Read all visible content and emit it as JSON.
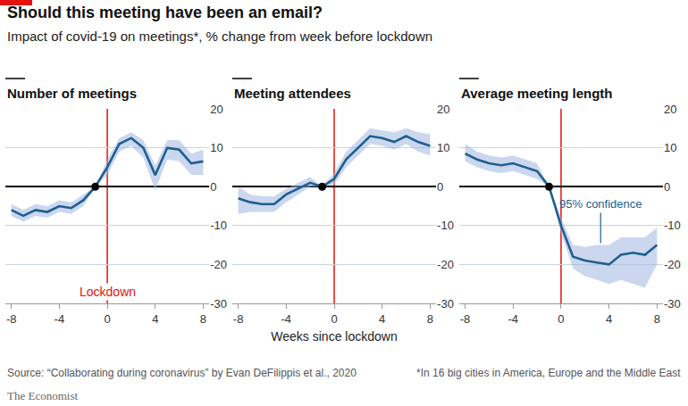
{
  "title": "Should this meeting have been an email?",
  "subtitle": "Impact of covid-19 on meetings*, % change from week before lockdown",
  "source": "Source: “Collaborating during coronavirus” by Evan DeFilippis et al., 2020",
  "footnote": "*In 16 big cities in America, Europe and the Middle East",
  "publisher": "The Economist",
  "chart_data": [
    {
      "type": "line",
      "title": "Number of meetings",
      "color": "#1f5f8f",
      "grid": true,
      "x": [
        -8,
        -7,
        -6,
        -5,
        -4,
        -3,
        -2,
        -1,
        0,
        1,
        2,
        3,
        4,
        5,
        6,
        7,
        8
      ],
      "values": [
        -6,
        -7.5,
        -6,
        -6.5,
        -5,
        -5.5,
        -3.5,
        0,
        5,
        11,
        12.5,
        10,
        3,
        10,
        9.5,
        6,
        6.5
      ],
      "lower": [
        -7.5,
        -9,
        -7.5,
        -8,
        -6.5,
        -7,
        -5,
        0,
        3,
        9,
        10.5,
        7.5,
        -1,
        7,
        6.5,
        3,
        3
      ],
      "upper": [
        -4.5,
        -6,
        -4.5,
        -5,
        -3.5,
        -4,
        -2,
        0,
        7,
        12.5,
        14,
        12,
        5.5,
        12,
        12,
        8.5,
        9.5
      ],
      "xlim": [
        -8.5,
        8.5
      ],
      "xticks": [
        -8,
        -4,
        0,
        4,
        8
      ],
      "ylim": [
        -30,
        20
      ],
      "yticks": [
        -30,
        -20,
        -10,
        0,
        10,
        20
      ],
      "vline_x": 0,
      "reference": {
        "x": -1,
        "y": 0
      },
      "annotations": [
        {
          "text": "Lockdown",
          "x": 0,
          "y": -27
        }
      ]
    },
    {
      "type": "line",
      "title": "Meeting attendees",
      "color": "#1f5f8f",
      "grid": true,
      "xlabel": "Weeks since lockdown",
      "x": [
        -8,
        -7,
        -6,
        -5,
        -4,
        -3,
        -2,
        -1,
        0,
        1,
        2,
        3,
        4,
        5,
        6,
        7,
        8
      ],
      "values": [
        -3,
        -4,
        -4.5,
        -4.5,
        -2,
        -0.5,
        1,
        0,
        2,
        7,
        10,
        13,
        12.5,
        11.5,
        13,
        11.5,
        10.5
      ],
      "lower": [
        -7,
        -6.5,
        -6.5,
        -6.5,
        -4,
        -2,
        0,
        0,
        0.5,
        5,
        8,
        11,
        10.5,
        9.5,
        11,
        9,
        8
      ],
      "upper": [
        0,
        -2,
        -2.5,
        -2.5,
        -0.5,
        1,
        2.5,
        0,
        3.5,
        9,
        12,
        15,
        14.5,
        14,
        15,
        14,
        13.5
      ],
      "xlim": [
        -8.5,
        8.5
      ],
      "xticks": [
        -8,
        -4,
        0,
        4,
        8
      ],
      "ylim": [
        -30,
        20
      ],
      "yticks": [
        -30,
        -20,
        -10,
        0,
        10,
        20
      ],
      "vline_x": 0,
      "reference": {
        "x": -1,
        "y": 0
      }
    },
    {
      "type": "line",
      "title": "Average meeting length",
      "color": "#1f5f8f",
      "grid": true,
      "x": [
        -8,
        -7,
        -6,
        -5,
        -4,
        -3,
        -2,
        -1,
        0,
        1,
        2,
        3,
        4,
        5,
        6,
        7,
        8
      ],
      "values": [
        8.5,
        7,
        6,
        5.5,
        6,
        5,
        4,
        0,
        -10,
        -18,
        -19,
        -19.5,
        -20,
        -17.5,
        -17,
        -17.5,
        -15
      ],
      "lower": [
        6.5,
        5,
        4,
        3.5,
        4,
        3,
        2,
        0,
        -12,
        -21,
        -23,
        -24,
        -25,
        -24,
        -25,
        -26,
        -20
      ],
      "upper": [
        11,
        9,
        8,
        7.5,
        8,
        7,
        6,
        0,
        -8,
        -15,
        -15.5,
        -15,
        -15,
        -13,
        -13,
        -13,
        -10.5
      ],
      "xlim": [
        -8.5,
        8.5
      ],
      "xticks": [
        -8,
        -4,
        0,
        4,
        8
      ],
      "ylim": [
        -30,
        20
      ],
      "yticks": [
        -30,
        -20,
        -10,
        0,
        10,
        20
      ],
      "vline_x": 0,
      "reference": {
        "x": -1,
        "y": 0
      },
      "annotations": [
        {
          "text": "95% confidence",
          "x": 3.3,
          "y": -14.5
        }
      ]
    }
  ]
}
